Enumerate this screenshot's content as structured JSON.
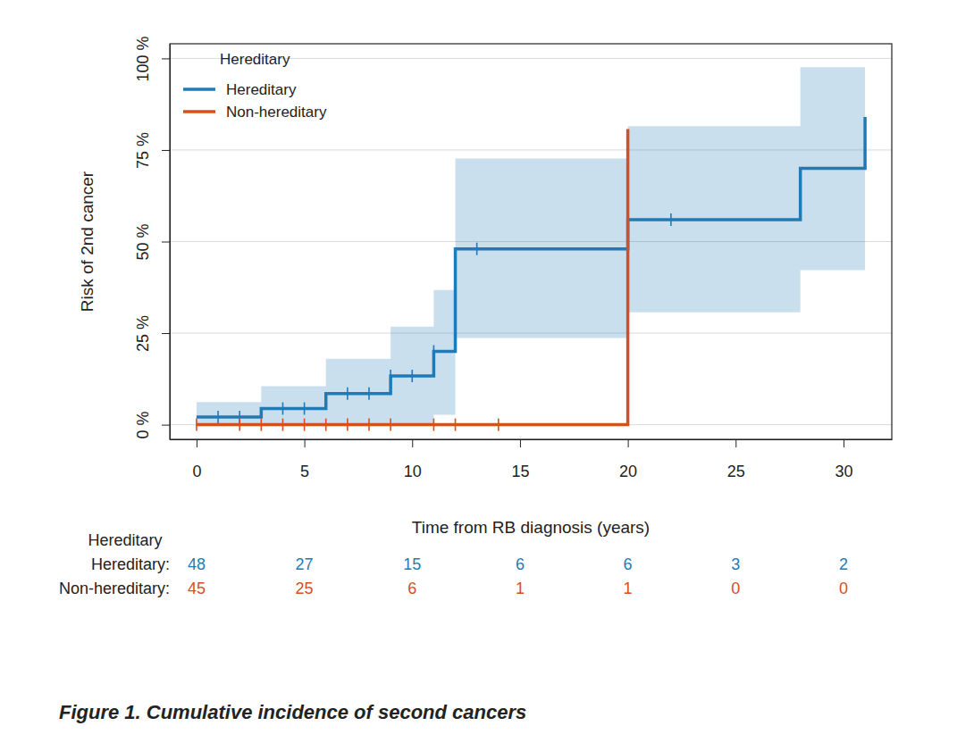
{
  "chart_data": {
    "type": "step",
    "caption": "Figure 1. Cumulative incidence of second cancers",
    "x_label": "Time from RB diagnosis (years)",
    "y_label": "Risk of 2nd cancer",
    "xlim": [
      -1.24,
      32.24
    ],
    "xticks": [
      0,
      5,
      10,
      15,
      20,
      25,
      30
    ],
    "ylim": [
      -4,
      104
    ],
    "yticks": [
      {
        "value": 0,
        "label": "0 %"
      },
      {
        "value": 25,
        "label": "25 %"
      },
      {
        "value": 50,
        "label": "50 %"
      },
      {
        "value": 75,
        "label": "75 %"
      },
      {
        "value": 100,
        "label": "100 %"
      }
    ],
    "grid": true,
    "legend": "top-left",
    "legend_title": "Hereditary",
    "series": [
      {
        "name": "Hereditary",
        "color": "#1f7bb8",
        "x": [
          0,
          3,
          6,
          9,
          11,
          12,
          20,
          28,
          31
        ],
        "values": [
          2.1,
          4.4,
          8.5,
          13.3,
          20,
          48,
          56,
          70,
          84
        ],
        "ci_lower": [
          0,
          0,
          0,
          0,
          2.7,
          23.7,
          30.7,
          42.2,
          42.2
        ],
        "ci_upper": [
          6.2,
          10.5,
          18,
          26.8,
          36.8,
          72.7,
          81.5,
          97.6,
          97.6
        ],
        "censored_x": [
          1,
          2,
          4,
          5,
          7,
          8,
          9,
          10,
          11,
          13,
          20,
          22
        ],
        "censored_values": [
          2.1,
          2.1,
          4.4,
          4.4,
          8.5,
          8.5,
          13.3,
          13.3,
          20,
          48,
          56,
          56
        ]
      },
      {
        "name": "Non-hereditary",
        "color": "#d4501c",
        "x": [
          0,
          20
        ],
        "values": [
          0,
          80.7
        ],
        "censored_x": [
          0,
          2,
          3,
          4,
          5,
          6,
          7,
          8,
          9,
          11,
          12,
          14
        ],
        "censored_values": [
          0,
          0,
          0,
          0,
          0,
          0,
          0,
          0,
          0,
          0,
          0,
          0
        ]
      }
    ],
    "risk_table": {
      "title": "Hereditary",
      "times": [
        0,
        5,
        10,
        15,
        20,
        25,
        30
      ],
      "rows": [
        {
          "label": "Hereditary:",
          "color": "#1f7bb8",
          "counts": [
            48,
            27,
            15,
            6,
            6,
            3,
            2
          ]
        },
        {
          "label": "Non-hereditary:",
          "color": "#d4501c",
          "counts": [
            45,
            25,
            6,
            1,
            1,
            0,
            0
          ]
        }
      ]
    }
  }
}
